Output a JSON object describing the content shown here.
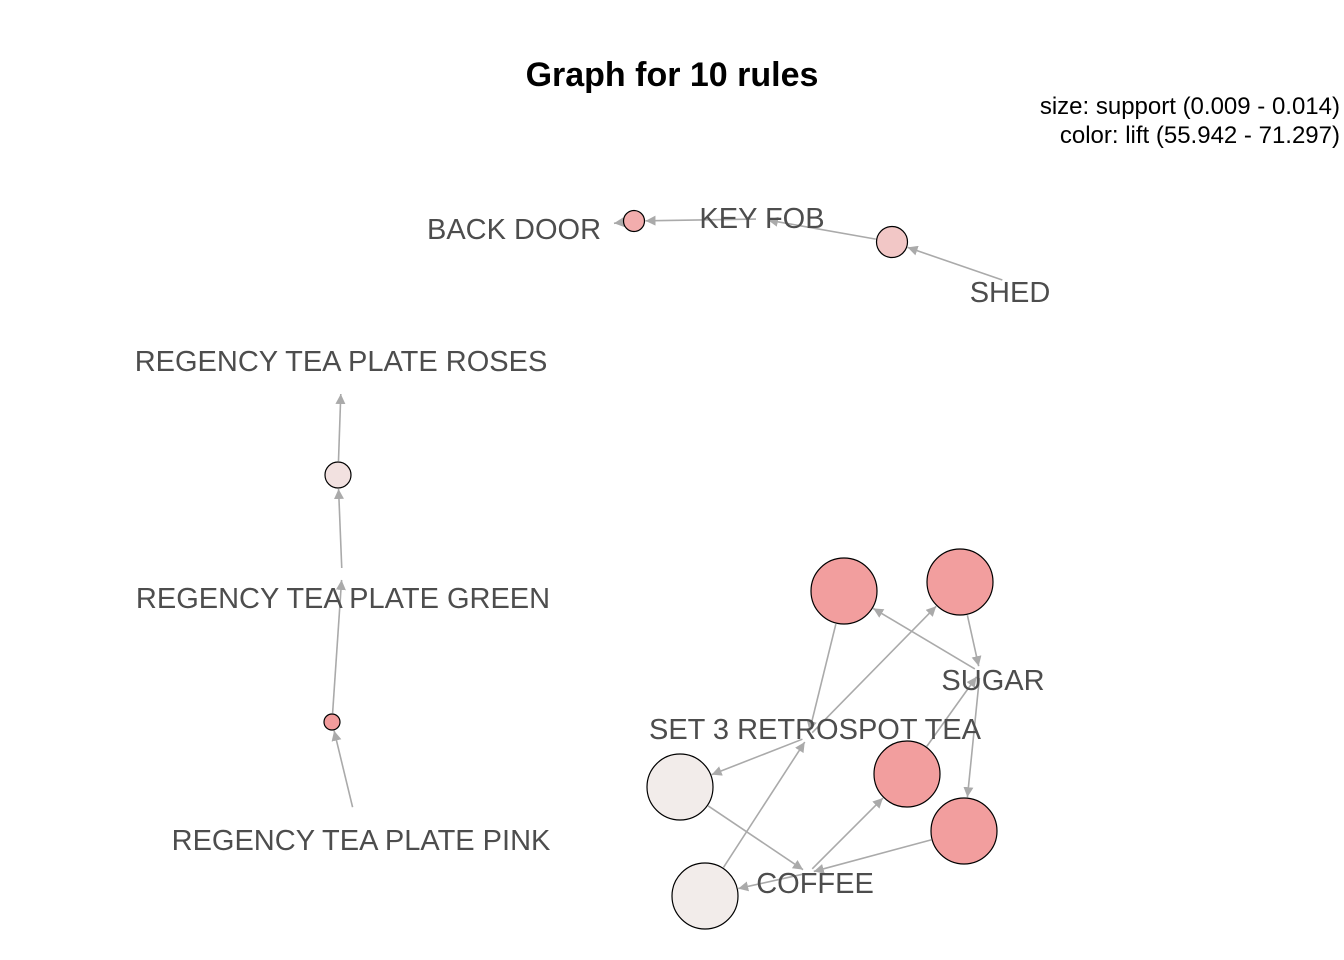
{
  "title": "Graph for 10 rules",
  "legend": {
    "size_line": "size: support (0.009 - 0.014)",
    "color_line": "color: lift (55.942 - 71.297)"
  },
  "colors": {
    "edge": "#aaaaaa",
    "label": "#4d4d4d",
    "node_stroke": "#000000",
    "lift_low": "#f2ecea",
    "lift_high": "#f29c9c"
  },
  "items": [
    {
      "id": "back_door",
      "label": "BACK DOOR"
    },
    {
      "id": "key_fob",
      "label": "KEY FOB"
    },
    {
      "id": "shed",
      "label": "SHED"
    },
    {
      "id": "roses",
      "label": "REGENCY TEA PLATE ROSES"
    },
    {
      "id": "green",
      "label": "REGENCY TEA PLATE GREEN"
    },
    {
      "id": "pink",
      "label": "REGENCY TEA PLATE PINK"
    },
    {
      "id": "sugar",
      "label": "SUGAR"
    },
    {
      "id": "retrospot",
      "label": "SET 3 RETROSPOT TEA"
    },
    {
      "id": "coffee",
      "label": "COFFEE"
    }
  ],
  "rules": [
    {
      "id": "r1",
      "lhs": [
        "key_fob"
      ],
      "rhs": [
        "back_door"
      ],
      "support": 0.0095,
      "lift": 68.0
    },
    {
      "id": "r2",
      "lhs": [
        "shed"
      ],
      "rhs": [
        "key_fob"
      ],
      "support": 0.0105,
      "lift": 63.0
    },
    {
      "id": "r3",
      "lhs": [
        "green"
      ],
      "rhs": [
        "roses"
      ],
      "support": 0.01,
      "lift": 58.0
    },
    {
      "id": "r4",
      "lhs": [
        "pink"
      ],
      "rhs": [
        "green"
      ],
      "support": 0.009,
      "lift": 71.297
    },
    {
      "id": "r5",
      "lhs": [
        "sugar"
      ],
      "rhs": [
        "retrospot"
      ],
      "support": 0.014,
      "lift": 71.0
    },
    {
      "id": "r6",
      "lhs": [
        "retrospot"
      ],
      "rhs": [
        "sugar"
      ],
      "support": 0.014,
      "lift": 71.0
    },
    {
      "id": "r7",
      "lhs": [
        "retrospot"
      ],
      "rhs": [
        "coffee"
      ],
      "support": 0.014,
      "lift": 56.0
    },
    {
      "id": "r8",
      "lhs": [
        "coffee"
      ],
      "rhs": [
        "retrospot"
      ],
      "support": 0.014,
      "lift": 55.942
    },
    {
      "id": "r9",
      "lhs": [
        "coffee"
      ],
      "rhs": [
        "sugar"
      ],
      "support": 0.014,
      "lift": 71.0
    },
    {
      "id": "r10",
      "lhs": [
        "sugar"
      ],
      "rhs": [
        "coffee"
      ],
      "support": 0.014,
      "lift": 71.0
    }
  ]
}
